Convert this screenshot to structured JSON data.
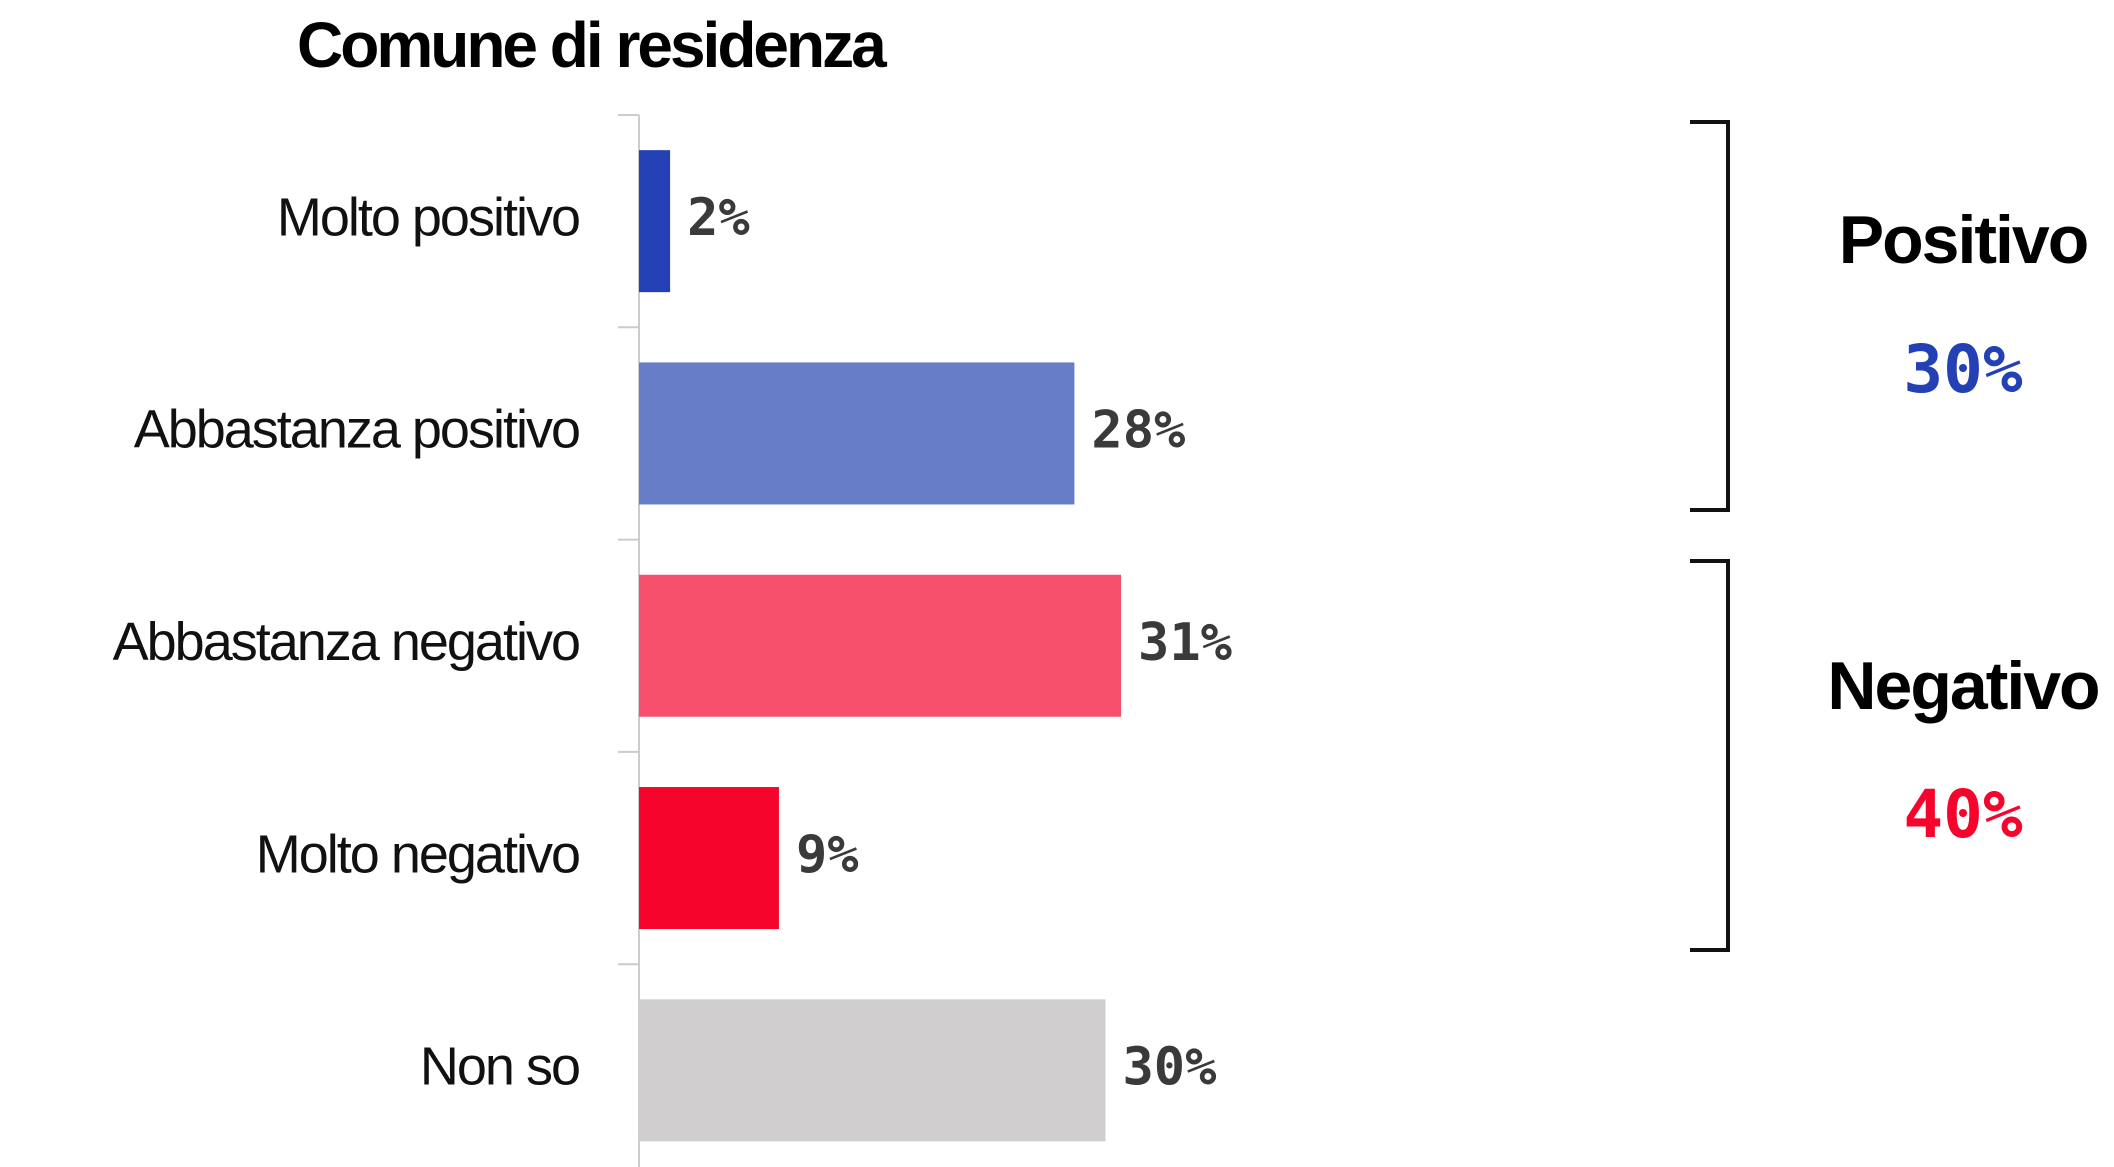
{
  "chart_data": {
    "type": "bar",
    "orientation": "horizontal",
    "title": "Comune di residenza",
    "categories": [
      "Molto positivo",
      "Abbastanza positivo",
      "Abbastanza negativo",
      "Molto negativo",
      "Non so"
    ],
    "values": [
      2,
      28,
      31,
      9,
      30
    ],
    "value_labels": [
      "2%",
      "28%",
      "31%",
      "9%",
      "30%"
    ],
    "colors": [
      "#2340b4",
      "#667dc8",
      "#f64f6b",
      "#f5042c",
      "#d0cecf"
    ],
    "groups": [
      {
        "label": "Positivo",
        "value": 30,
        "value_label": "30%",
        "color": "#2340b4"
      },
      {
        "label": "Negativo",
        "value": 40,
        "value_label": "40%",
        "color": "#f5042c"
      }
    ]
  }
}
